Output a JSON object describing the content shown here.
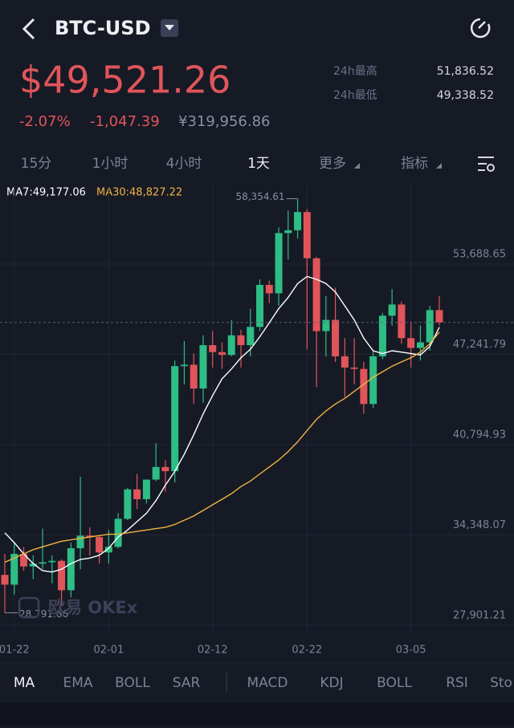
{
  "header": {
    "symbol": "BTC-USD"
  },
  "price": {
    "last": "$49,521.26",
    "change_pct": "-2.07%",
    "change": "-1,047.39",
    "cny": "¥319,956.86",
    "high_label": "24h最高",
    "high": "51,836.52",
    "low_label": "24h最低",
    "low": "49,338.52"
  },
  "intervals": [
    "15分",
    "1小时",
    "4小时",
    "1天",
    "更多",
    "指标"
  ],
  "watermark": "欧易 OKEx",
  "indicators": [
    "MA",
    "EMA",
    "BOLL",
    "SAR",
    "MACD",
    "KDJ",
    "BOLL",
    "RSI",
    "Sto"
  ],
  "chart_data": {
    "type": "candlestick",
    "categories": [
      null,
      "01-22",
      null,
      null,
      null,
      null,
      null,
      null,
      null,
      null,
      null,
      "02-01",
      null,
      null,
      null,
      null,
      null,
      null,
      null,
      null,
      null,
      null,
      "02-12",
      null,
      null,
      null,
      null,
      null,
      null,
      null,
      null,
      null,
      "02-22",
      null,
      null,
      null,
      null,
      null,
      null,
      null,
      null,
      null,
      null,
      "03-05",
      null,
      null,
      null
    ],
    "open": [
      31500,
      30800,
      33000,
      32100,
      32300,
      32400,
      32500,
      30400,
      33400,
      34300,
      34200,
      33100,
      33500,
      35500,
      37600,
      36900,
      38300,
      39200,
      38900,
      46400,
      46500,
      44800,
      47900,
      47400,
      47200,
      48600,
      47900,
      49200,
      52200,
      51600,
      55900,
      56100,
      57400,
      54100,
      48900,
      49700,
      47100,
      46300,
      46200,
      43700,
      47100,
      50000,
      50800,
      48400,
      47700,
      48100,
      50400
    ],
    "high": [
      33000,
      33800,
      33500,
      32900,
      34800,
      32900,
      32600,
      33800,
      38500,
      34900,
      34300,
      34700,
      35900,
      37700,
      38700,
      38300,
      40900,
      39700,
      46800,
      48200,
      47300,
      48600,
      48900,
      48100,
      49700,
      49000,
      50500,
      52600,
      52500,
      56300,
      57500,
      58354.61,
      57600,
      54200,
      51400,
      52000,
      48400,
      48400,
      46700,
      47500,
      50200,
      51900,
      51000,
      49500,
      49300,
      50700,
      51400
    ],
    "low": [
      28791.66,
      30100,
      31800,
      31200,
      31900,
      30900,
      29300,
      29900,
      31900,
      32900,
      32300,
      32300,
      33400,
      35400,
      36200,
      36600,
      38200,
      37400,
      38100,
      45100,
      43700,
      43800,
      46300,
      46200,
      47100,
      46300,
      47100,
      48900,
      50900,
      50700,
      54000,
      55500,
      47600,
      44900,
      47100,
      46700,
      44200,
      45100,
      43000,
      43400,
      46900,
      49300,
      48000,
      46300,
      46800,
      47500,
      49300
    ],
    "close": [
      30800,
      33000,
      32100,
      32300,
      32400,
      32500,
      30400,
      33400,
      34300,
      34200,
      33100,
      33500,
      35500,
      37600,
      36900,
      38300,
      39200,
      38900,
      46400,
      46500,
      44800,
      47900,
      47400,
      47200,
      48600,
      47900,
      49200,
      52200,
      51600,
      55900,
      56100,
      57400,
      54100,
      48900,
      49700,
      47100,
      46300,
      46200,
      43700,
      47100,
      50000,
      50800,
      48400,
      47700,
      48100,
      50400,
      49521.26
    ],
    "up_color": "#2ebd85",
    "down_color": "#e0555a",
    "series": [
      {
        "name": "MA7:49,177.06",
        "color": "#ffffff",
        "values": [
          34500,
          33800,
          33000,
          32300,
          31800,
          31700,
          31900,
          32300,
          32600,
          32700,
          32900,
          33400,
          34200,
          34700,
          35300,
          35900,
          36800,
          37900,
          38900,
          40100,
          41500,
          43000,
          44300,
          45500,
          46200,
          47000,
          47600,
          48500,
          49500,
          50500,
          51300,
          52300,
          52800,
          52600,
          52300,
          51700,
          50700,
          49700,
          48400,
          47500,
          47300,
          47500,
          47400,
          47300,
          47200,
          47800,
          49177.06
        ]
      },
      {
        "name": "MA30:48,827.22",
        "color": "#f0b440",
        "values": [
          32400,
          32700,
          33000,
          33300,
          33500,
          33700,
          33900,
          34000,
          34100,
          34200,
          34300,
          34400,
          34400,
          34500,
          34600,
          34700,
          34800,
          34900,
          35100,
          35400,
          35700,
          36100,
          36500,
          36900,
          37300,
          37800,
          38200,
          38700,
          39200,
          39700,
          40300,
          41000,
          41800,
          42600,
          43200,
          43700,
          44100,
          44600,
          45100,
          45600,
          46000,
          46400,
          46700,
          47000,
          47400,
          48000,
          48827.22
        ]
      }
    ],
    "annotations": [
      "58,354.61",
      "28,791.66"
    ],
    "ylim": [
      27271,
      59359
    ],
    "yticks": [
      {
        "value": 27901.21,
        "label": "27,901.21"
      },
      {
        "value": 34348.07,
        "label": "34,348.07"
      },
      {
        "value": 40794.93,
        "label": "40,794.93"
      },
      {
        "value": 47241.79,
        "label": "47,241.79"
      },
      {
        "value": 53688.65,
        "label": "53,688.65"
      }
    ],
    "grid": true
  }
}
